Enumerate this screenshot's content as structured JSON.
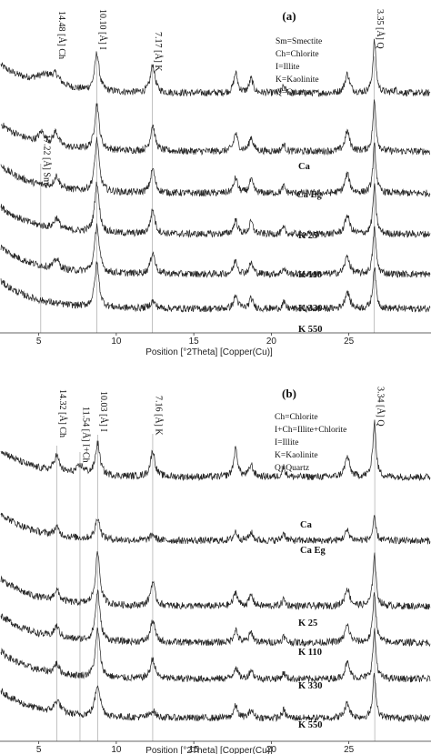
{
  "chart_data": [
    {
      "type": "line",
      "panel_label": "(a)",
      "xlabel": "Position [°2Theta] [Copper(Cu)]",
      "xlim": [
        2.5,
        30.3
      ],
      "x_ticks": [
        5,
        10,
        15,
        20,
        25
      ],
      "legend": [
        "Sm=Smectite",
        "Ch=Chlorite",
        "I=Illite",
        "K=Kaolinite",
        "Q=Quartz"
      ],
      "peak_labels": [
        {
          "label": "14.48 [Å] Ch",
          "x": 6.1,
          "line": false
        },
        {
          "label": "17.22 [Å] Sm",
          "x": 5.13,
          "line": true
        },
        {
          "label": "10.10 [Å] I",
          "x": 8.75,
          "line": true
        },
        {
          "label": "7.17 [Å] K",
          "x": 12.33,
          "line": true
        },
        {
          "label": "3.35 [Å] Q",
          "x": 26.63,
          "line": true
        }
      ],
      "series": [
        {
          "name": "Ca",
          "offset": 0,
          "peaks": [
            [
              5.5,
              0.55,
              0.9
            ],
            [
              6.1,
              0.35,
              0.25
            ],
            [
              8.75,
              1.9,
              0.17
            ],
            [
              12.35,
              1.4,
              0.17
            ],
            [
              17.7,
              1.0,
              0.15
            ],
            [
              18.7,
              0.7,
              0.15
            ],
            [
              20.8,
              0.35,
              0.12
            ],
            [
              24.9,
              0.95,
              0.18
            ],
            [
              26.65,
              2.6,
              0.12
            ],
            [
              28.0,
              0.15,
              0.2
            ]
          ]
        },
        {
          "name": "Ca Eg",
          "offset": 1,
          "peaks": [
            [
              5.2,
              0.55,
              0.25
            ],
            [
              6.1,
              0.7,
              0.2
            ],
            [
              8.75,
              2.3,
              0.17
            ],
            [
              12.35,
              1.3,
              0.17
            ],
            [
              17.7,
              0.9,
              0.15
            ],
            [
              18.7,
              0.7,
              0.15
            ],
            [
              20.8,
              0.35,
              0.12
            ],
            [
              24.9,
              1.0,
              0.18
            ],
            [
              26.65,
              2.5,
              0.12
            ]
          ]
        },
        {
          "name": "K 25",
          "offset": 2,
          "peaks": [
            [
              6.15,
              0.6,
              0.2
            ],
            [
              8.75,
              2.6,
              0.17
            ],
            [
              12.35,
              1.2,
              0.17
            ],
            [
              17.7,
              0.75,
              0.15
            ],
            [
              18.7,
              0.65,
              0.15
            ],
            [
              20.8,
              0.35,
              0.12
            ],
            [
              24.9,
              0.95,
              0.18
            ],
            [
              26.65,
              2.4,
              0.12
            ]
          ]
        },
        {
          "name": "K 110",
          "offset": 3,
          "peaks": [
            [
              6.15,
              0.55,
              0.2
            ],
            [
              8.75,
              2.5,
              0.17
            ],
            [
              12.35,
              1.2,
              0.17
            ],
            [
              17.7,
              0.7,
              0.15
            ],
            [
              18.7,
              0.6,
              0.15
            ],
            [
              20.8,
              0.3,
              0.12
            ],
            [
              24.9,
              0.95,
              0.18
            ],
            [
              26.65,
              2.4,
              0.12
            ]
          ]
        },
        {
          "name": "K 330",
          "offset": 4,
          "peaks": [
            [
              6.15,
              0.5,
              0.2
            ],
            [
              8.75,
              2.4,
              0.17
            ],
            [
              12.35,
              1.1,
              0.17
            ],
            [
              17.7,
              0.7,
              0.15
            ],
            [
              18.7,
              0.55,
              0.15
            ],
            [
              20.8,
              0.3,
              0.12
            ],
            [
              24.9,
              0.9,
              0.18
            ],
            [
              26.65,
              2.3,
              0.12
            ]
          ]
        },
        {
          "name": "K 550",
          "offset": 5,
          "peaks": [
            [
              8.75,
              2.2,
              0.17
            ],
            [
              12.35,
              0.35,
              0.2
            ],
            [
              17.7,
              0.65,
              0.15
            ],
            [
              18.7,
              0.5,
              0.15
            ],
            [
              20.8,
              0.3,
              0.12
            ],
            [
              24.9,
              0.85,
              0.18
            ],
            [
              26.65,
              2.1,
              0.12
            ]
          ]
        }
      ]
    },
    {
      "type": "line",
      "panel_label": "(b)",
      "xlabel": "Position [°2Theta] [Copper(Cu)]",
      "xlim": [
        2.5,
        30.3
      ],
      "x_ticks": [
        5,
        10,
        15,
        20,
        25
      ],
      "legend": [
        "Ch=Chlorite",
        "I+Ch=Illite+Chlorite",
        "I=Illite",
        "K=Kaolinite",
        "Q=Quartz"
      ],
      "peak_labels": [
        {
          "label": "14.32 [Å] Ch",
          "x": 6.17,
          "line": true
        },
        {
          "label": "11.54 [Å] I+Ch",
          "x": 7.66,
          "line": true
        },
        {
          "label": "10.03 [Å] I",
          "x": 8.81,
          "line": true
        },
        {
          "label": "7.16 [Å] K",
          "x": 12.35,
          "line": true
        },
        {
          "label": "3.34 [Å] Q",
          "x": 26.67,
          "line": true
        }
      ],
      "series": [
        {
          "name": "Ca",
          "offset": 0,
          "peaks": [
            [
              6.15,
              0.8,
              0.2
            ],
            [
              7.7,
              0.4,
              0.3
            ],
            [
              8.8,
              1.6,
              0.17
            ],
            [
              12.35,
              1.3,
              0.17
            ],
            [
              17.7,
              1.4,
              0.15
            ],
            [
              18.7,
              0.6,
              0.15
            ],
            [
              20.8,
              0.5,
              0.12
            ],
            [
              24.9,
              1.0,
              0.18
            ],
            [
              26.65,
              2.8,
              0.12
            ]
          ]
        },
        {
          "name": "Ca Eg",
          "offset": 1,
          "peaks": [
            [
              6.15,
              0.4,
              0.2
            ],
            [
              8.8,
              1.1,
              0.17
            ],
            [
              12.35,
              0.3,
              0.17
            ],
            [
              17.7,
              0.45,
              0.15
            ],
            [
              18.7,
              0.4,
              0.15
            ],
            [
              20.8,
              0.4,
              0.12
            ],
            [
              24.9,
              0.5,
              0.18
            ],
            [
              26.65,
              1.1,
              0.12
            ]
          ]
        },
        {
          "name": "K 25",
          "offset": 2,
          "peaks": [
            [
              6.15,
              0.55,
              0.2
            ],
            [
              8.8,
              2.6,
              0.17
            ],
            [
              12.35,
              1.2,
              0.17
            ],
            [
              17.7,
              0.7,
              0.15
            ],
            [
              18.7,
              0.55,
              0.15
            ],
            [
              20.8,
              0.35,
              0.12
            ],
            [
              24.9,
              0.9,
              0.18
            ],
            [
              26.65,
              2.6,
              0.12
            ]
          ]
        },
        {
          "name": "K 110",
          "offset": 3,
          "peaks": [
            [
              6.15,
              0.55,
              0.2
            ],
            [
              8.8,
              2.5,
              0.17
            ],
            [
              12.35,
              1.1,
              0.17
            ],
            [
              17.7,
              0.65,
              0.15
            ],
            [
              18.7,
              0.5,
              0.15
            ],
            [
              20.8,
              0.3,
              0.12
            ],
            [
              24.9,
              0.85,
              0.18
            ],
            [
              26.65,
              2.5,
              0.12
            ]
          ]
        },
        {
          "name": "K 330",
          "offset": 4,
          "peaks": [
            [
              6.15,
              0.5,
              0.2
            ],
            [
              8.8,
              2.4,
              0.17
            ],
            [
              12.35,
              1.0,
              0.17
            ],
            [
              17.7,
              0.6,
              0.15
            ],
            [
              18.7,
              0.45,
              0.15
            ],
            [
              20.8,
              0.3,
              0.12
            ],
            [
              24.9,
              0.8,
              0.18
            ],
            [
              26.65,
              2.4,
              0.12
            ]
          ]
        },
        {
          "name": "K 550",
          "offset": 5,
          "peaks": [
            [
              6.2,
              0.6,
              0.25
            ],
            [
              8.8,
              1.6,
              0.2
            ],
            [
              12.35,
              0.35,
              0.2
            ],
            [
              17.7,
              0.6,
              0.15
            ],
            [
              18.7,
              0.4,
              0.15
            ],
            [
              20.8,
              0.4,
              0.12
            ],
            [
              24.9,
              0.75,
              0.18
            ],
            [
              26.65,
              2.2,
              0.12
            ]
          ]
        }
      ]
    }
  ]
}
